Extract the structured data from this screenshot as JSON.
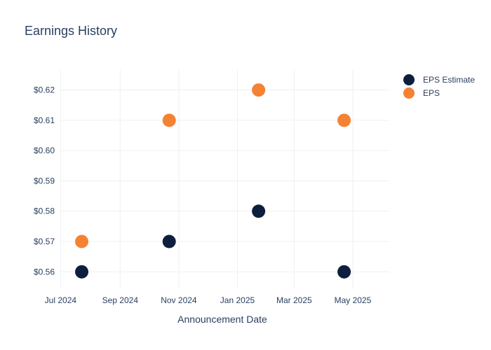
{
  "chart_data": {
    "type": "scatter",
    "title": "Earnings History",
    "xlabel": "Announcement Date",
    "ylabel": "",
    "x_ticks": [
      "2024-07-01",
      "2024-09-01",
      "2024-11-01",
      "2025-01-01",
      "2025-03-01",
      "2025-05-01"
    ],
    "x_tick_labels": [
      "Jul 2024",
      "Sep 2024",
      "Nov 2024",
      "Jan 2025",
      "Mar 2025",
      "May 2025"
    ],
    "y_ticks": [
      0.56,
      0.57,
      0.58,
      0.59,
      0.6,
      0.61,
      0.62
    ],
    "y_tick_labels": [
      "$0.56",
      "$0.57",
      "$0.58",
      "$0.59",
      "$0.60",
      "$0.61",
      "$0.62"
    ],
    "xlim": [
      "2024-06-30",
      "2025-06-08"
    ],
    "ylim": [
      0.5543,
      0.6266
    ],
    "grid": true,
    "legend": "top-right",
    "series": [
      {
        "name": "EPS Estimate",
        "color": "#0d1f3c",
        "points": [
          {
            "x": "2024-07-23",
            "y": 0.56
          },
          {
            "x": "2024-10-22",
            "y": 0.57
          },
          {
            "x": "2025-01-23",
            "y": 0.58
          },
          {
            "x": "2025-04-22",
            "y": 0.56
          }
        ]
      },
      {
        "name": "EPS",
        "color": "#f58233",
        "points": [
          {
            "x": "2024-07-23",
            "y": 0.57
          },
          {
            "x": "2024-10-22",
            "y": 0.61
          },
          {
            "x": "2025-01-23",
            "y": 0.62
          },
          {
            "x": "2025-04-22",
            "y": 0.61
          }
        ]
      }
    ]
  }
}
